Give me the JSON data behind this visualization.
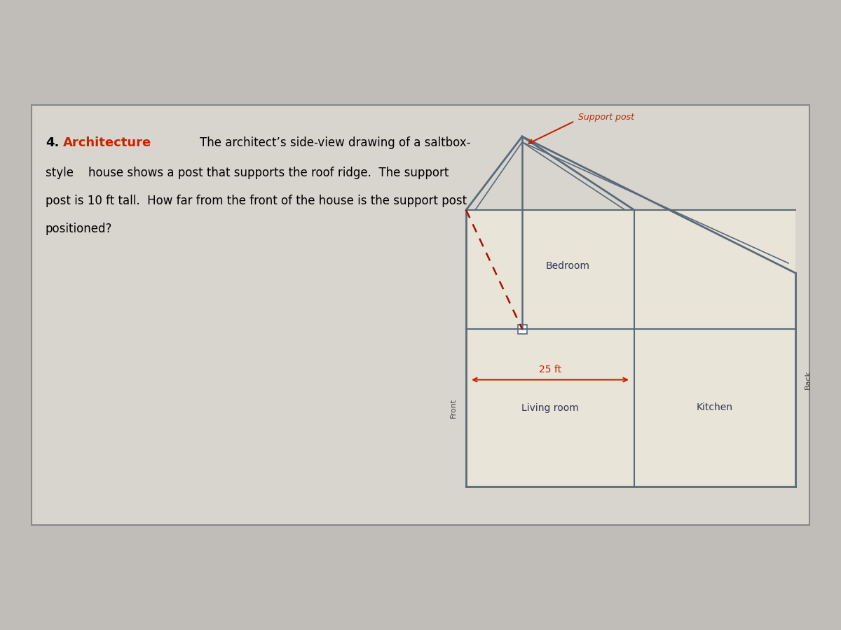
{
  "bg_color": "#c0bdb8",
  "card_bg": "#d8d5ce",
  "house_fill": "#e8e4d8",
  "house_line_color": "#5a6a7a",
  "red_color": "#cc2200",
  "dark_red": "#aa1100",
  "title_num": "4.",
  "title_word": "Architecture",
  "title_color": "#cc2200",
  "body_text_line1": "The architect’s side-view drawing of a saltbox-",
  "body_text_line2": "style    house shows a post that supports the roof ridge.  The support",
  "body_text_line3": "post is 10 ft tall.  How far from the front of the house is the support post",
  "body_text_line4": "positioned?",
  "label_support_post": "Support post",
  "label_bedroom": "Bedroom",
  "label_living_room": "Living room",
  "label_kitchen": "Kitchen",
  "label_25ft": "25 ft",
  "label_front": "Front",
  "label_back": "Back"
}
